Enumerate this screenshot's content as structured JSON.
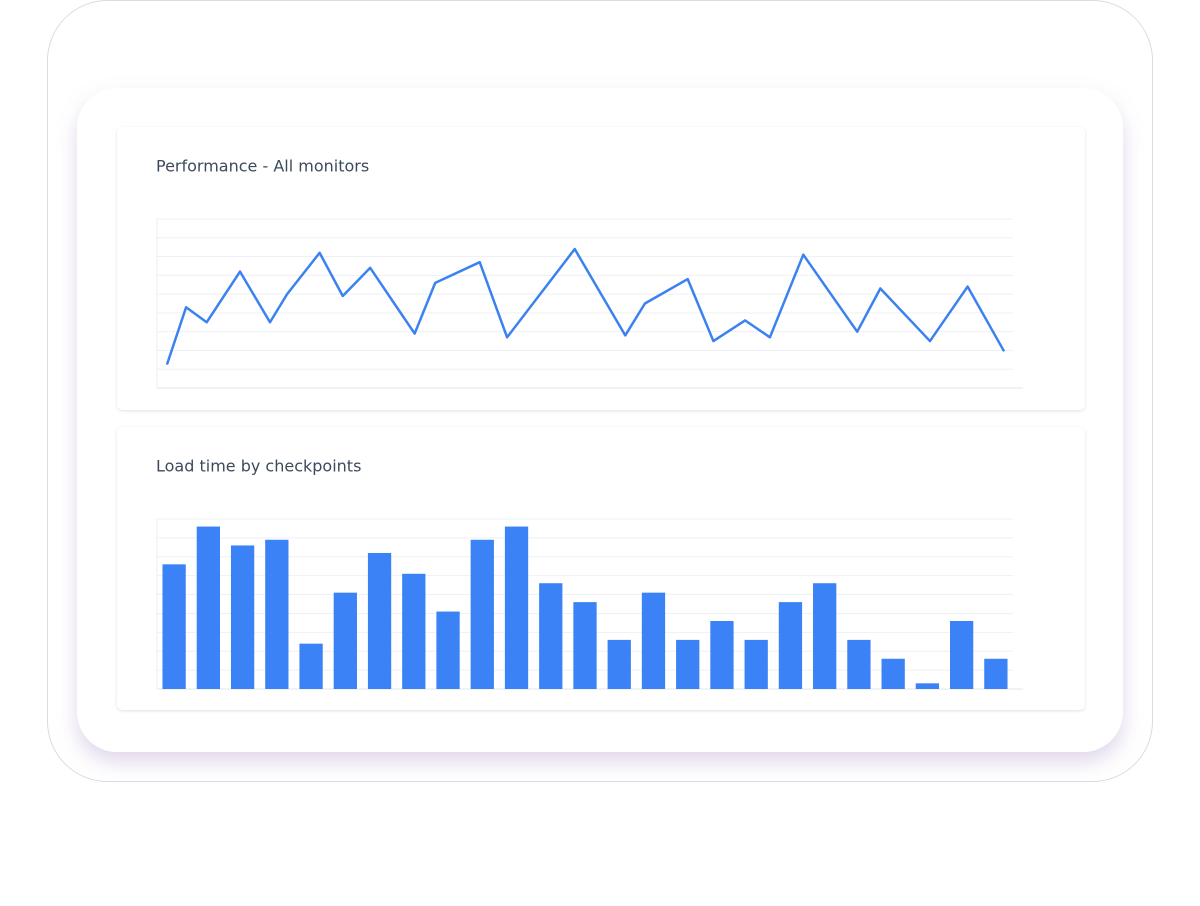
{
  "chart_data": [
    {
      "type": "line",
      "title": "Performance - All monitors",
      "color": "#3b82f0",
      "x": [
        1.2,
        3.4,
        5.8,
        9.7,
        13.2,
        15.2,
        19.0,
        21.7,
        24.9,
        30.1,
        32.5,
        37.7,
        40.9,
        48.8,
        54.7,
        57.0,
        62.0,
        65.0,
        68.7,
        71.6,
        75.5,
        81.8,
        84.5,
        90.3,
        94.7,
        98.9
      ],
      "values": [
        1.3,
        4.3,
        3.5,
        6.2,
        3.5,
        5.0,
        7.2,
        4.9,
        6.4,
        2.9,
        5.6,
        6.7,
        2.7,
        7.4,
        2.8,
        4.5,
        5.8,
        2.5,
        3.6,
        2.7,
        7.1,
        3.0,
        5.3,
        2.5,
        5.4,
        2.0
      ],
      "xlim": [
        0,
        100
      ],
      "ylim": [
        0,
        9
      ],
      "yticks": [
        0,
        1,
        2,
        3,
        4,
        5,
        6,
        7,
        8,
        9
      ],
      "grid": true
    },
    {
      "type": "bar",
      "title": "Load time by checkpoints",
      "color": "#3b82f6",
      "categories": [
        null,
        null,
        null,
        null,
        null,
        null,
        null,
        null,
        null,
        null,
        null,
        null,
        null,
        null,
        null,
        null,
        null,
        null,
        null,
        null,
        null,
        null,
        null,
        null,
        null
      ],
      "values": [
        6.6,
        8.6,
        7.6,
        7.9,
        2.4,
        5.1,
        7.2,
        6.1,
        4.1,
        7.9,
        8.6,
        5.6,
        4.6,
        2.6,
        5.1,
        2.6,
        3.6,
        2.6,
        4.6,
        5.6,
        2.6,
        1.6,
        0.3,
        3.6,
        1.6
      ],
      "ylim": [
        0,
        9
      ],
      "yticks": [
        0,
        1,
        2,
        3,
        4,
        5,
        6,
        7,
        8,
        9
      ],
      "grid": true
    }
  ]
}
